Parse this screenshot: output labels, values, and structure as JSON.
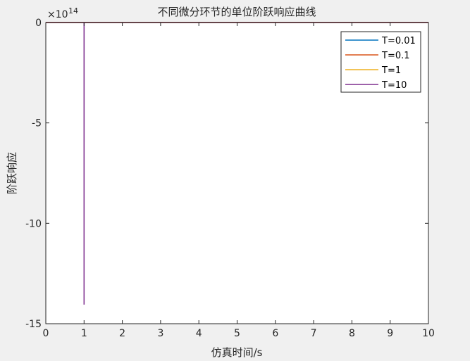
{
  "chart_data": {
    "type": "line",
    "title": "不同微分环节的单位阶跃响应曲线",
    "xlabel": "仿真时间/s",
    "ylabel": "阶跃响应",
    "xlim": [
      0,
      10
    ],
    "ylim": [
      -15,
      0
    ],
    "y_exponent_label": "×10",
    "y_exponent_power": "14",
    "xticks": [
      0,
      1,
      2,
      3,
      4,
      5,
      6,
      7,
      8,
      9,
      10
    ],
    "xtick_labels": [
      "0",
      "1",
      "2",
      "3",
      "4",
      "5",
      "6",
      "7",
      "8",
      "9",
      "10"
    ],
    "yticks": [
      0,
      -5,
      -10,
      -15
    ],
    "ytick_labels": [
      "0",
      "-5",
      "-10",
      "-15"
    ],
    "legend_location": "top-right",
    "series": [
      {
        "name": "T=0.01",
        "color": "#0072BD",
        "x": [
          0,
          10
        ],
        "y": [
          0,
          0
        ]
      },
      {
        "name": "T=0.1",
        "color": "#D95319",
        "x": [
          0,
          10
        ],
        "y": [
          0,
          0
        ]
      },
      {
        "name": "T=1",
        "color": "#EDB120",
        "x": [
          0,
          10
        ],
        "y": [
          0,
          0
        ]
      },
      {
        "name": "T=10",
        "color": "#7E2F8E",
        "x": [
          0,
          1,
          1,
          1.001,
          10
        ],
        "y": [
          0,
          0,
          -14.05,
          0,
          0
        ]
      }
    ]
  }
}
